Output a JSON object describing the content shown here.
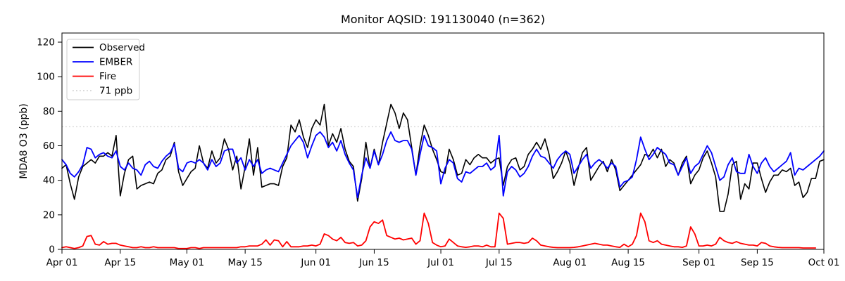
{
  "title": "Monitor AQSID: 191130040 (n=362)",
  "y_axis": {
    "label": "MDA8 O3 (ppb)",
    "ticks": [
      0,
      20,
      40,
      60,
      80,
      100,
      120
    ]
  },
  "x_axis": {
    "tick_days": [
      0,
      14,
      30,
      44,
      61,
      75,
      91,
      105,
      122,
      136,
      153,
      167,
      183
    ],
    "tick_labels": [
      "Apr 01",
      "Apr 15",
      "May 01",
      "May 15",
      "Jun 01",
      "Jun 15",
      "Jul 01",
      "Jul 15",
      "Aug 01",
      "Aug 15",
      "Sep 01",
      "Sep 15",
      "Oct 01"
    ],
    "total_days": 183
  },
  "legend": {
    "items": [
      {
        "label": "Observed",
        "color": "#000000",
        "dash": ""
      },
      {
        "label": "EMBER",
        "color": "#0000ff",
        "dash": ""
      },
      {
        "label": "Fire",
        "color": "#ff0000",
        "dash": ""
      },
      {
        "label": "71 ppb",
        "color": "#d4d4d4",
        "dash": "1.8 3.2"
      }
    ]
  },
  "reference_line": {
    "value": 71,
    "label": "71 ppb",
    "color": "#d4d4d4"
  },
  "chart_data": {
    "type": "line",
    "title": "Monitor AQSID: 191130040 (n=362)",
    "xlabel": "",
    "ylabel": "MDA8 O3 (ppb)",
    "ylim": [
      0,
      125
    ],
    "y_ticks": [
      0,
      20,
      40,
      60,
      80,
      100,
      120
    ],
    "x_start_date": "Apr 01",
    "x_end_date": "Oct 01",
    "x_unit": "day index from Apr 01 (daily values)",
    "reference_line_ppb": 71,
    "grid": false,
    "legend_position": "upper left",
    "series": [
      {
        "name": "Observed",
        "color": "#000000",
        "values": [
          47,
          49,
          38,
          29,
          42,
          48,
          50,
          52,
          50,
          54,
          54,
          56,
          54,
          66,
          31,
          44,
          52,
          54,
          35,
          37,
          38,
          39,
          38,
          44,
          46,
          52,
          54,
          62,
          45,
          37,
          41,
          45,
          47,
          60,
          50,
          47,
          57,
          50,
          53,
          64,
          58,
          46,
          54,
          35,
          48,
          64,
          43,
          59,
          36,
          37,
          38,
          38,
          37,
          48,
          53,
          72,
          68,
          75,
          65,
          59,
          70,
          75,
          72,
          84,
          60,
          67,
          62,
          70,
          58,
          51,
          48,
          28,
          41,
          62,
          47,
          58,
          49,
          62,
          73,
          84,
          79,
          70,
          79,
          75,
          59,
          43,
          60,
          72,
          66,
          58,
          52,
          45,
          44,
          58,
          52,
          43,
          44,
          52,
          49,
          53,
          55,
          53,
          53,
          50,
          52,
          53,
          37,
          48,
          52,
          53,
          46,
          48,
          55,
          58,
          62,
          58,
          64,
          55,
          41,
          45,
          50,
          57,
          50,
          37,
          47,
          56,
          59,
          40,
          44,
          48,
          51,
          45,
          52,
          46,
          34,
          37,
          40,
          43,
          46,
          49,
          55,
          54,
          58,
          53,
          58,
          48,
          52,
          50,
          43,
          50,
          54,
          38,
          43,
          46,
          53,
          57,
          50,
          42,
          22,
          22,
          32,
          49,
          51,
          29,
          38,
          35,
          50,
          50,
          41,
          33,
          39,
          43,
          43,
          46,
          45,
          47,
          37,
          39,
          30,
          33,
          41,
          41,
          51,
          52
        ]
      },
      {
        "name": "EMBER",
        "color": "#0000ff",
        "values": [
          52,
          49,
          44,
          42,
          45,
          49,
          59,
          58,
          53,
          55,
          56,
          54,
          53,
          57,
          48,
          46,
          50,
          47,
          46,
          43,
          49,
          51,
          48,
          47,
          51,
          54,
          56,
          61,
          47,
          45,
          50,
          51,
          50,
          52,
          50,
          46,
          52,
          48,
          50,
          57,
          58,
          58,
          50,
          53,
          46,
          52,
          48,
          52,
          44,
          46,
          47,
          46,
          45,
          50,
          55,
          60,
          63,
          66,
          62,
          53,
          60,
          66,
          68,
          65,
          59,
          62,
          57,
          63,
          55,
          50,
          46,
          30,
          43,
          53,
          47,
          57,
          49,
          55,
          63,
          68,
          63,
          62,
          63,
          63,
          58,
          43,
          55,
          66,
          60,
          59,
          57,
          38,
          47,
          52,
          50,
          41,
          39,
          45,
          44,
          46,
          48,
          48,
          50,
          46,
          48,
          66,
          31,
          45,
          48,
          46,
          42,
          44,
          48,
          54,
          58,
          54,
          53,
          50,
          47,
          52,
          55,
          57,
          55,
          44,
          48,
          52,
          55,
          47,
          50,
          52,
          50,
          47,
          50,
          48,
          36,
          39,
          40,
          42,
          52,
          65,
          58,
          52,
          55,
          59,
          57,
          55,
          50,
          49,
          43,
          48,
          53,
          44,
          48,
          50,
          55,
          60,
          56,
          48,
          40,
          42,
          49,
          53,
          45,
          44,
          44,
          55,
          48,
          44,
          50,
          53,
          48,
          45,
          47,
          49,
          51,
          56,
          43,
          47,
          46,
          48,
          50,
          52,
          54,
          57
        ]
      },
      {
        "name": "Fire",
        "color": "#ff0000",
        "values": [
          1,
          1.5,
          1,
          0.5,
          1,
          2,
          7.5,
          8,
          3,
          2.5,
          4.5,
          3,
          3.5,
          3.5,
          2.5,
          2,
          1.5,
          1,
          1,
          1.5,
          1,
          1,
          1.5,
          1,
          1,
          1,
          1,
          1,
          0.5,
          0.5,
          0.5,
          1,
          1,
          0.5,
          1,
          1,
          1,
          1,
          1,
          1,
          1,
          1,
          1,
          1.5,
          1.5,
          2,
          2,
          2,
          3,
          5.5,
          2.5,
          5.5,
          5,
          1.5,
          4.5,
          1.5,
          1.5,
          1.5,
          2,
          2,
          2.5,
          2,
          3,
          9,
          8,
          6,
          5,
          7,
          4,
          3.5,
          4,
          2,
          2.5,
          5,
          13,
          16,
          15,
          17,
          8,
          7,
          6,
          6.5,
          5.5,
          6,
          6.5,
          3,
          5,
          21,
          15,
          4,
          2.5,
          1.5,
          2,
          6,
          4,
          2,
          1.5,
          1.2,
          1.5,
          2,
          2,
          1.5,
          2.5,
          1.5,
          1.5,
          21,
          18,
          3,
          3.5,
          4,
          4,
          3.5,
          4,
          6.5,
          5,
          2.5,
          2,
          1.5,
          1.2,
          1,
          1,
          1,
          1,
          1.2,
          1.5,
          2,
          2.5,
          3,
          3.5,
          3,
          2.5,
          2.5,
          2,
          1.5,
          1.2,
          3,
          1.5,
          3,
          8,
          21,
          16,
          5,
          4,
          5,
          3,
          2.5,
          2,
          1.5,
          1.5,
          1.2,
          2,
          13,
          9,
          2,
          2,
          2.5,
          2,
          3,
          7,
          5,
          4,
          3.5,
          4.5,
          3.5,
          3,
          2.5,
          2.5,
          2,
          4,
          3.5,
          2,
          1.5,
          1.2,
          1,
          1,
          1,
          1,
          1,
          0.8,
          0.8,
          0.8,
          0.8
        ]
      }
    ]
  }
}
